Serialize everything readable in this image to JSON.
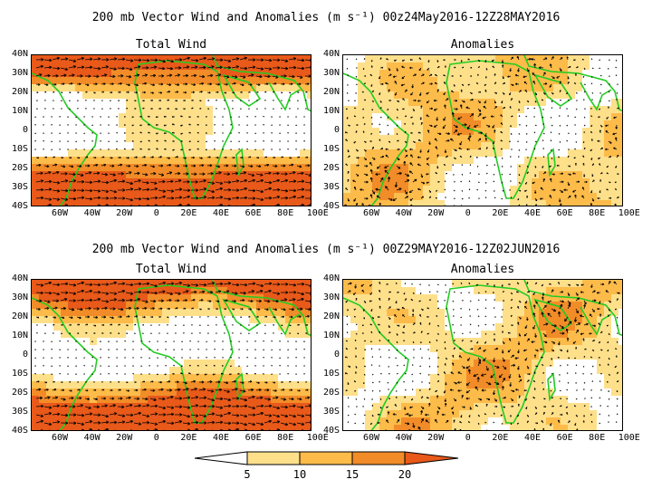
{
  "rows": [
    {
      "title": "200 mb Vector Wind and Anomalies (m s⁻¹) 00z24May2016-12Z28MAY2016",
      "left_title": "Total Wind",
      "right_title": "Anomalies"
    },
    {
      "title": "200 mb Vector Wind and Anomalies (m s⁻¹) 00Z29MAY2016-12Z02JUN2016",
      "left_title": "Total Wind",
      "right_title": "Anomalies"
    }
  ],
  "lat_ticks": [
    "40N",
    "30N",
    "20N",
    "10N",
    "0",
    "10S",
    "20S",
    "30S",
    "40S"
  ],
  "lon_ticks": [
    "60W",
    "40W",
    "20W",
    "0",
    "20E",
    "40E",
    "60E",
    "80E",
    "100E"
  ],
  "colorbar": {
    "labels": [
      "5",
      "10",
      "15",
      "20"
    ],
    "colors": [
      "#ffffff",
      "#fee08b",
      "#fdbb4a",
      "#f28c28",
      "#e8591a"
    ]
  },
  "colors": {
    "coast": "#22cc22",
    "arrow": "#000000"
  }
}
